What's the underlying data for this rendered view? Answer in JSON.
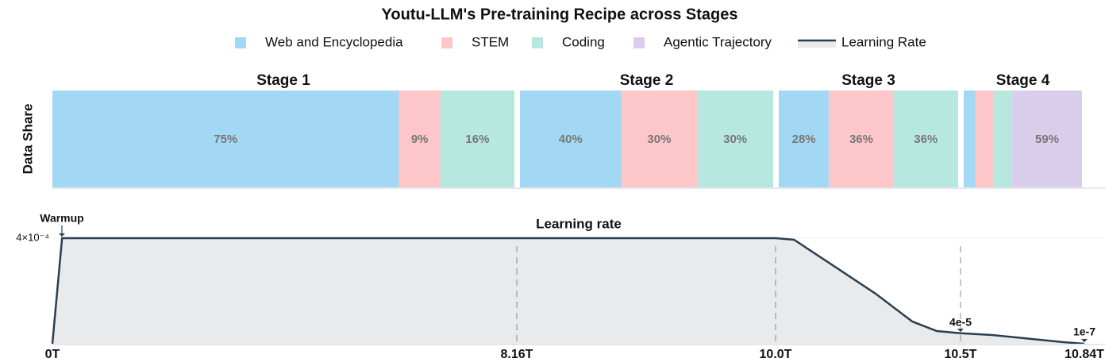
{
  "chart_data": [
    {
      "type": "bar",
      "orientation": "horizontal",
      "stacked": true,
      "title": "Youtu-LLM's Pre-training Recipe across Stages",
      "ylabel": "Data Share",
      "categories": [
        "Stage 1",
        "Stage 2",
        "Stage 3",
        "Stage 4"
      ],
      "series": [
        {
          "name": "Web and Encyclopedia",
          "color": "#a3d8f4",
          "values": [
            75,
            40,
            28,
            10
          ],
          "value_labels": [
            "75%",
            "40%",
            "28%",
            null
          ]
        },
        {
          "name": "STEM",
          "color": "#fdc6c8",
          "values": [
            9,
            30,
            36,
            15
          ],
          "value_labels": [
            "9%",
            "30%",
            "36%",
            null
          ]
        },
        {
          "name": "Coding",
          "color": "#b7e8df",
          "values": [
            16,
            30,
            36,
            16
          ],
          "value_labels": [
            "16%",
            "30%",
            "36%",
            null
          ]
        },
        {
          "name": "Agentic Trajectory",
          "color": "#dacdeb",
          "values": [
            0,
            0,
            0,
            59
          ],
          "value_labels": [
            null,
            null,
            null,
            "59%"
          ]
        }
      ]
    },
    {
      "type": "line",
      "title": "Learning rate",
      "x": [
        0,
        0.17,
        8.16,
        10.0,
        10.05,
        10.157,
        10.27,
        10.37,
        10.436,
        10.5,
        10.587,
        10.696,
        10.783,
        10.84
      ],
      "xlim": [
        0,
        10.84
      ],
      "xticks": [
        {
          "value": 0,
          "label": "0T"
        },
        {
          "value": 8.16,
          "label": "8.16T"
        },
        {
          "value": 10.0,
          "label": "10.0T"
        },
        {
          "value": 10.5,
          "label": "10.5T"
        },
        {
          "value": 10.84,
          "label": "10.84T"
        }
      ],
      "ylim": [
        0,
        0.00042
      ],
      "yticks": [
        {
          "value": 0.0004,
          "label": "4×10⁻⁴"
        }
      ],
      "series": [
        {
          "name": "Learning Rate",
          "color": "#2c3e50",
          "fill": "#e9eaec",
          "values": [
            0,
            0.0004,
            0.0004,
            0.0004,
            0.000394,
            0.000295,
            0.00019,
            8.4e-05,
            4.8e-05,
            4e-05,
            3.3e-05,
            1.8e-05,
            6e-06,
            1e-07
          ]
        }
      ],
      "annotations": [
        "Warmup",
        "4e-5",
        "1e-7"
      ]
    }
  ]
}
